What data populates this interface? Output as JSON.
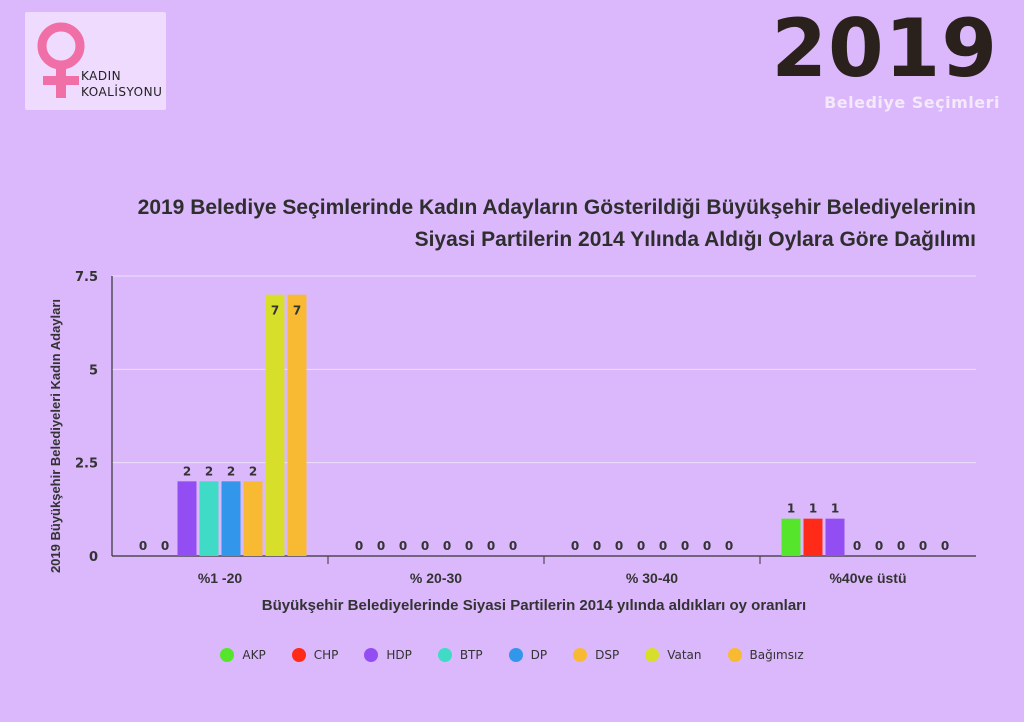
{
  "logo": {
    "line1": "KADIN",
    "line2": "KOALİSYONU",
    "color": "#f06fa7"
  },
  "header": {
    "year": "2019",
    "subtitle": "Belediye Seçimleri"
  },
  "title_line1": "2019 Belediye Seçimlerinde Kadın Adayların Gösterildiği Büyükşehir Belediyelerinin",
  "title_line2": "Siyasi Partilerin 2014 Yılında Aldığı Oylara Göre Dağılımı",
  "chart_data": {
    "type": "bar",
    "title": "2019 Belediye Seçimlerinde Kadın Adayların Gösterildiği Büyükşehir Belediyelerinin Siyasi Partilerin 2014 Yılında Aldığı Oylara Göre Dağılımı",
    "xlabel": "Büyükşehir Belediyelerinde Siyasi Partilerin 2014 yılında aldıkları oy oranları",
    "ylabel": "2019 Büyükşehir Belediyeleri Kadın Adayları",
    "categories": [
      "%1 -20",
      "% 20-30",
      "% 30-40",
      "%40ve üstü"
    ],
    "ylim": [
      0,
      7.5
    ],
    "yticks": [
      "0",
      "2.5",
      "5",
      "7.5"
    ],
    "grid": true,
    "legend_position": "bottom",
    "series": [
      {
        "name": "AKP",
        "color": "#55e62c",
        "values": [
          0,
          0,
          0,
          1
        ]
      },
      {
        "name": "CHP",
        "color": "#ff2a17",
        "values": [
          0,
          0,
          0,
          1
        ]
      },
      {
        "name": "HDP",
        "color": "#934ef3",
        "values": [
          2,
          0,
          0,
          1
        ]
      },
      {
        "name": "BTP",
        "color": "#3fdbc6",
        "values": [
          2,
          0,
          0,
          0
        ]
      },
      {
        "name": "DP",
        "color": "#3296ea",
        "values": [
          2,
          0,
          0,
          0
        ]
      },
      {
        "name": "DSP",
        "color": "#f9ba33",
        "values": [
          2,
          0,
          0,
          0
        ]
      },
      {
        "name": "Vatan",
        "color": "#d8df2a",
        "values": [
          7,
          0,
          0,
          0
        ]
      },
      {
        "name": "Bağımsız",
        "color": "#f9ba33",
        "values": [
          7,
          0,
          0,
          0
        ]
      }
    ],
    "visible_data_labels": [
      [
        "0",
        "0",
        "2",
        "2",
        "2",
        "2",
        "7",
        "7"
      ],
      [
        "0",
        "0",
        "0",
        "0",
        "0",
        "0",
        "0",
        "0"
      ],
      [
        "0",
        "0",
        "0",
        "0",
        "0",
        "0",
        "0",
        "0"
      ],
      [
        "1",
        "1",
        "1",
        "0",
        "0",
        "0",
        "0",
        "0"
      ]
    ]
  }
}
